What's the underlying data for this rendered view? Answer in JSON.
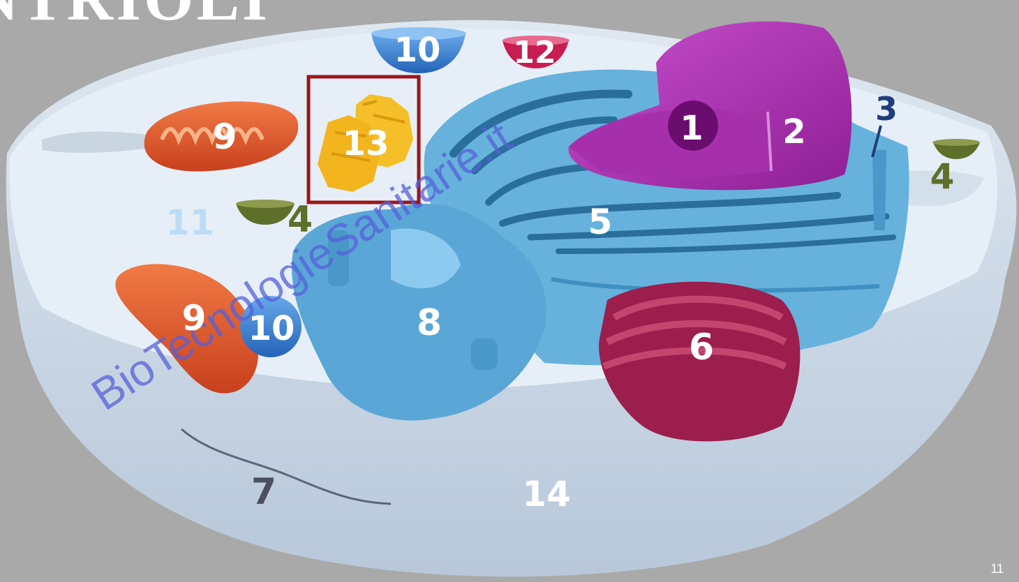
{
  "slide": {
    "title": "NTRIOLI",
    "page_number": "11",
    "watermark": "BioTecnologieSanitarie.it"
  },
  "labels": {
    "nucleolus": "1",
    "nucleus": "2",
    "ribosome": "3",
    "vesicle_left": "4",
    "vesicle_right": "4",
    "rough_er": "5",
    "golgi": "6",
    "cytoskeleton": "7",
    "smooth_er": "8",
    "mitochondrion_top": "9",
    "mitochondrion_bottom": "9",
    "vacuole_top": "10",
    "vacuole_bottom": "10",
    "cytosol": "11",
    "lysosome": "12",
    "centriole": "13",
    "cell_membrane": "14"
  },
  "colors": {
    "background": "#a9a9a9",
    "cytoplasm": "#e2edf5",
    "cell_wall": "#c9d8e6",
    "nucleus": "#b233b8",
    "er": "#4a9ccb",
    "golgi": "#9c1e4d",
    "mitochondria": "#e2572c",
    "vacuole": "#2f73c9",
    "centriole": "#f3b51e",
    "highlight_box": "#9c1519",
    "vesicle": "#5e6f2a",
    "watermark": "#5560d8"
  }
}
